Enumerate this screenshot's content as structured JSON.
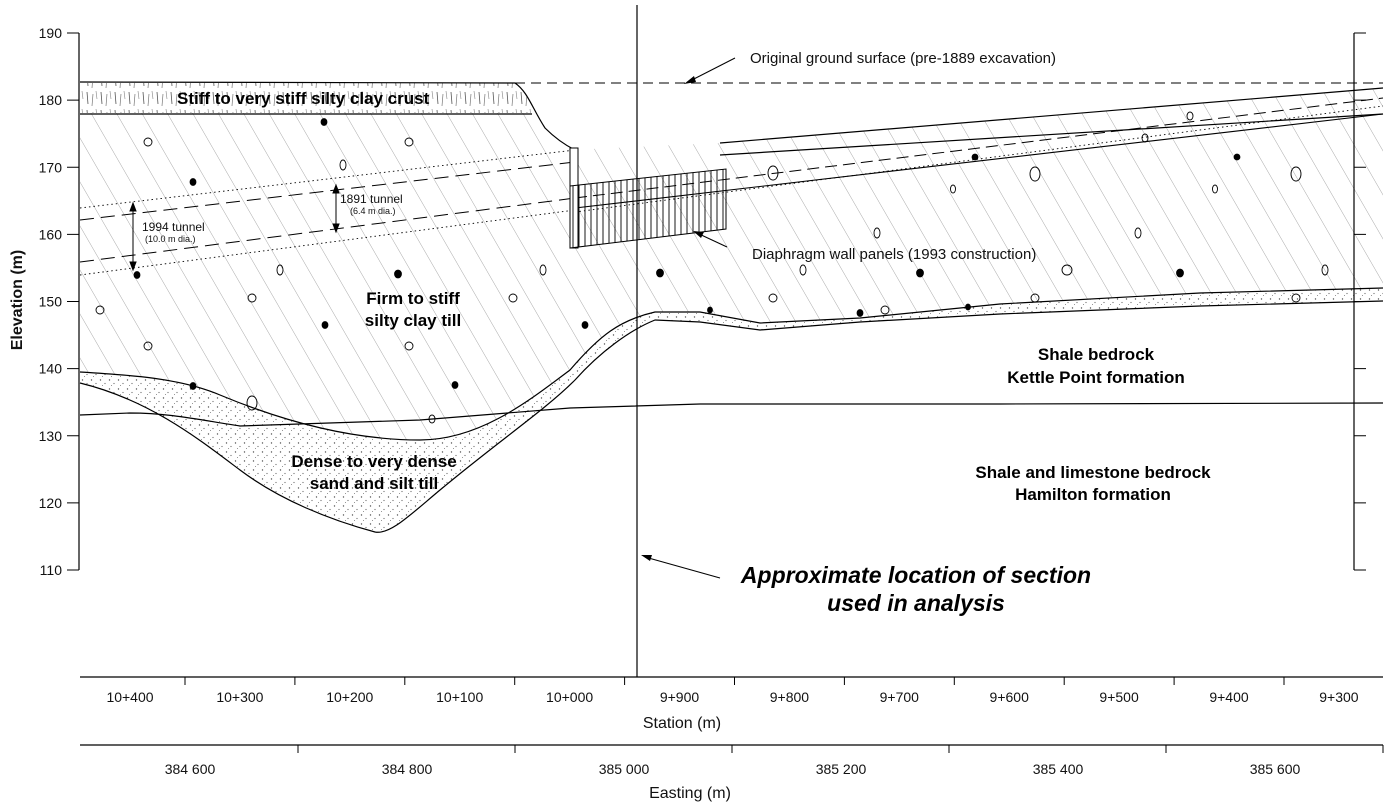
{
  "axes": {
    "y_title": "Elevation (m)",
    "y_ticks": [
      "190",
      "180",
      "170",
      "160",
      "150",
      "140",
      "130",
      "120",
      "110"
    ],
    "station_title": "Station (m)",
    "station_ticks": [
      "10+400",
      "10+300",
      "10+200",
      "10+100",
      "10+000",
      "9+900",
      "9+800",
      "9+700",
      "9+600",
      "9+500",
      "9+400",
      "9+300"
    ],
    "easting_title": "Easting (m)",
    "easting_ticks": [
      "384 600",
      "384 800",
      "385 000",
      "385 200",
      "385 400",
      "385 600"
    ]
  },
  "layers": {
    "crust": "Stiff to very stiff silty clay crust",
    "till_line1": "Firm to stiff",
    "till_line2": "silty clay till",
    "sand_line1": "Dense to very dense",
    "sand_line2": "sand and silt till",
    "shale1_line1": "Shale bedrock",
    "shale1_line2": "Kettle Point formation",
    "shale2_line1": "Shale and limestone bedrock",
    "shale2_line2": "Hamilton formation"
  },
  "annotations": {
    "ground_surface": "Original ground surface (pre-1889 excavation)",
    "diaphragm": "Diaphragm wall panels (1993 construction)",
    "tunnel_1994": "1994 tunnel",
    "tunnel_1994_dia": "(10.0 m dia.)",
    "tunnel_1891": "1891 tunnel",
    "tunnel_1891_dia": "(6.4 m dia.)",
    "section_line1": "Approximate location of section",
    "section_line2": "used in analysis"
  },
  "colors": {
    "line": "#000000",
    "hatch": "#9a9a9a",
    "stipple": "#555555"
  }
}
